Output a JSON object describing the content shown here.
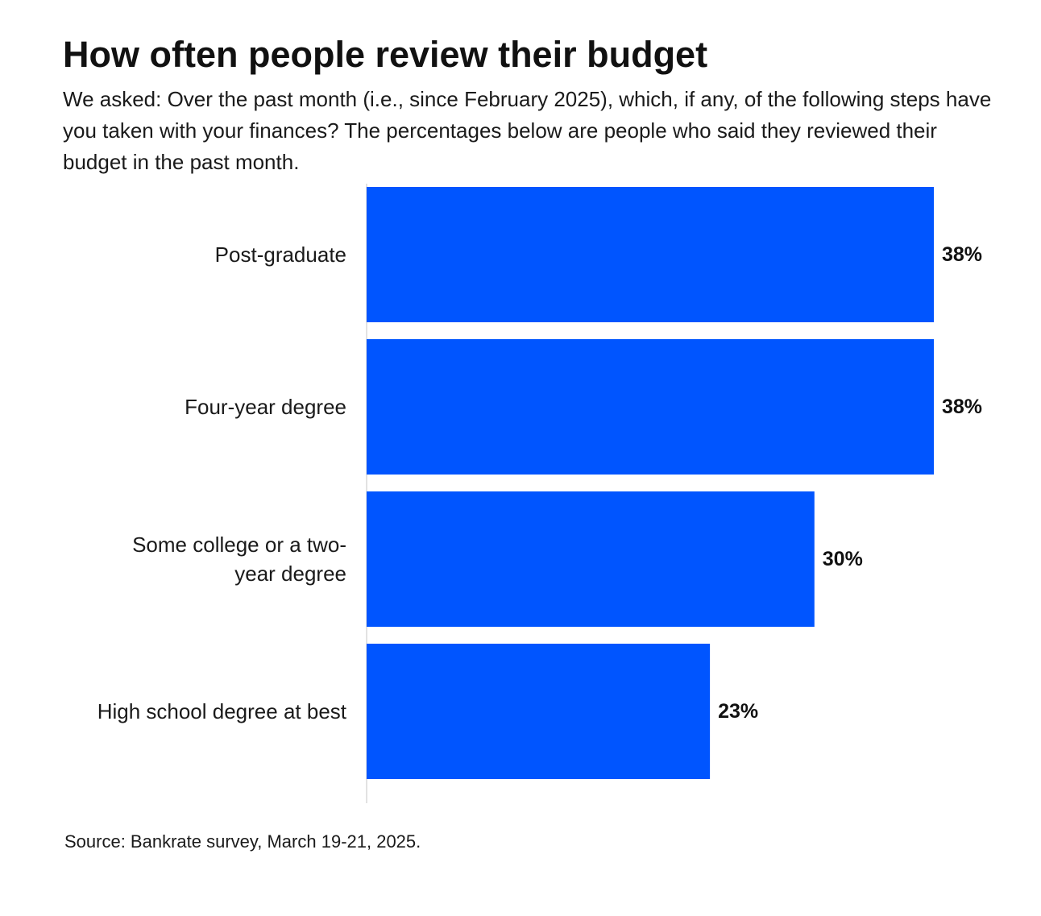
{
  "chart_data": {
    "type": "bar",
    "orientation": "horizontal",
    "title": "How often people review their budget",
    "subtitle": "We asked: Over the past month (i.e., since February 2025), which, if any, of the following steps have you taken with your finances? The percentages below are people who said they reviewed their budget in the past month.",
    "categories": [
      "Post-graduate",
      "Four-year degree",
      "Some college or a two-year degree",
      "High school degree at best"
    ],
    "values": [
      38,
      38,
      30,
      23
    ],
    "value_labels": [
      "38%",
      "38%",
      "30%",
      "23%"
    ],
    "xlim": [
      0,
      38
    ],
    "grid": false,
    "legend": "none",
    "bar_color": "#0055ff",
    "axis_line_color": "#d9d9d9"
  },
  "footer": {
    "source": "Source: Bankrate survey, March 19-21, 2025."
  }
}
